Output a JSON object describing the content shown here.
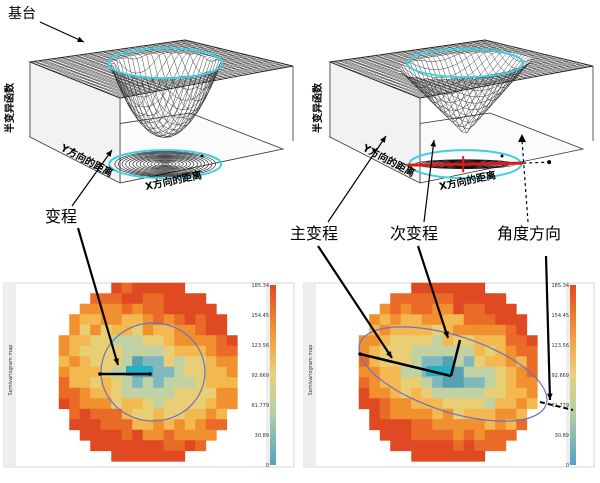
{
  "labels": {
    "sill": "基台",
    "range": "变程",
    "major_range": "主变程",
    "minor_range": "次变程",
    "angle_direction": "角度方向",
    "zlabel": "半变异函数",
    "ylabel": "Y方向的距离",
    "xlabel": "X方向的距离"
  },
  "legend_ticks": [
    "185.34",
    "154.45",
    "123.56",
    "92.669",
    "61.779",
    "30.89",
    "0"
  ],
  "map_title": "Semivariogram map",
  "colors": {
    "ring": "#3fd0e0",
    "major_axis": "#e01818",
    "surface_mesh": "#303030",
    "map_palette": [
      "#54a2b4",
      "#80b8c0",
      "#c0d2a4",
      "#e8cf76",
      "#f4b850",
      "#f0902e",
      "#ea6a28",
      "#e04a22"
    ]
  }
}
